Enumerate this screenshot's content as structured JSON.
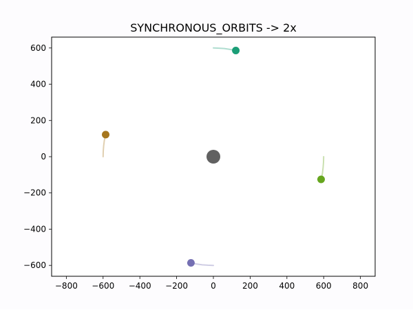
{
  "chart_data": {
    "type": "scatter",
    "title": "SYNCHRONOUS_ORBITS -> 2x",
    "xlabel": "",
    "ylabel": "",
    "xlim": [
      -880,
      880
    ],
    "ylim": [
      -660,
      660
    ],
    "xticks": [
      -800,
      -600,
      -400,
      -200,
      0,
      200,
      400,
      600,
      800
    ],
    "yticks": [
      -600,
      -400,
      -200,
      0,
      200,
      400,
      600
    ],
    "xtick_labels": [
      "−800",
      "−600",
      "−400",
      "−200",
      "0",
      "200",
      "400",
      "600",
      "800"
    ],
    "ytick_labels": [
      "−600",
      "−400",
      "−200",
      "0",
      "200",
      "400",
      "600"
    ],
    "grid": false,
    "center_body": {
      "x": 0,
      "y": 0,
      "color": "#616161"
    },
    "series": [
      {
        "color": "#1b9e77",
        "x": [
          122
        ],
        "y": [
          586
        ],
        "trail": [
          [
            0,
            600
          ],
          [
            30,
            599
          ],
          [
            60,
            597
          ],
          [
            90,
            592
          ],
          [
            122,
            586
          ]
        ]
      },
      {
        "color": "#66a61e",
        "x": [
          586
        ],
        "y": [
          -125
        ],
        "trail": [
          [
            600,
            0
          ],
          [
            599,
            -30
          ],
          [
            597,
            -60
          ],
          [
            593,
            -93
          ],
          [
            586,
            -125
          ]
        ]
      },
      {
        "color": "#7570b3",
        "x": [
          -122
        ],
        "y": [
          -586
        ],
        "trail": [
          [
            0,
            -600
          ],
          [
            -30,
            -599
          ],
          [
            -60,
            -597
          ],
          [
            -90,
            -593
          ],
          [
            -122,
            -586
          ]
        ]
      },
      {
        "color": "#a6761d",
        "x": [
          -586
        ],
        "y": [
          122
        ],
        "trail": [
          [
            -600,
            0
          ],
          [
            -599,
            30
          ],
          [
            -597,
            60
          ],
          [
            -593,
            90
          ],
          [
            -586,
            122
          ]
        ]
      }
    ]
  }
}
